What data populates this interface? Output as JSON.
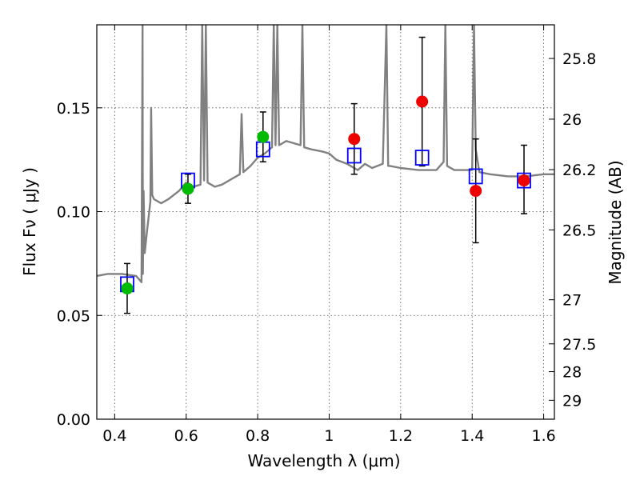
{
  "chart_data": {
    "type": "scatter",
    "xlabel": "Wavelength  λ (μm)",
    "ylabel": "Flux  Fν  ( μJy )",
    "y2label": "Magnitude (AB)",
    "xlim": [
      0.35,
      1.63
    ],
    "ylim": [
      0.0,
      0.19
    ],
    "grid": true,
    "xticks": [
      0.4,
      0.6,
      0.8,
      1.0,
      1.2,
      1.4,
      1.6
    ],
    "xtick_labels": [
      "0.4",
      "0.6",
      "0.8",
      "1",
      "1.2",
      "1.4",
      "1.6"
    ],
    "yticks": [
      0.0,
      0.05,
      0.1,
      0.15
    ],
    "ytick_labels": [
      "0.00",
      "0.05",
      "0.10",
      "0.15"
    ],
    "y2ticks": [
      {
        "label": "25.8",
        "mag": 25.8
      },
      {
        "label": "26",
        "mag": 26.0
      },
      {
        "label": "26.2",
        "mag": 26.2
      },
      {
        "label": "26.5",
        "mag": 26.5
      },
      {
        "label": "27",
        "mag": 27.0
      },
      {
        "label": "27.5",
        "mag": 27.5
      },
      {
        "label": "28",
        "mag": 28.0
      },
      {
        "label": "29",
        "mag": 29.0
      }
    ],
    "colors": {
      "model": "#808080",
      "model_photometry": "#0000ff",
      "obs_optical": "#00bb00",
      "obs_nir": "#ee0000",
      "errorbar": "#000000"
    },
    "model_spectrum": {
      "x": [
        0.35,
        0.38,
        0.42,
        0.46,
        0.475,
        0.478,
        0.479,
        0.481,
        0.484,
        0.49,
        0.5,
        0.502,
        0.505,
        0.51,
        0.53,
        0.55,
        0.58,
        0.6,
        0.62,
        0.64,
        0.645,
        0.65,
        0.655,
        0.66,
        0.68,
        0.7,
        0.72,
        0.75,
        0.755,
        0.76,
        0.78,
        0.8,
        0.82,
        0.84,
        0.845,
        0.85,
        0.855,
        0.86,
        0.88,
        0.9,
        0.92,
        0.925,
        0.93,
        0.95,
        0.98,
        1.0,
        1.02,
        1.05,
        1.08,
        1.1,
        1.12,
        1.15,
        1.16,
        1.165,
        1.17,
        1.2,
        1.25,
        1.3,
        1.32,
        1.325,
        1.33,
        1.35,
        1.38,
        1.4,
        1.405,
        1.41,
        1.42,
        1.45,
        1.5,
        1.55,
        1.6,
        1.63
      ],
      "y": [
        0.069,
        0.07,
        0.07,
        0.069,
        0.066,
        0.19,
        0.07,
        0.11,
        0.08,
        0.09,
        0.105,
        0.15,
        0.108,
        0.106,
        0.104,
        0.106,
        0.11,
        0.114,
        0.112,
        0.113,
        0.19,
        0.115,
        0.19,
        0.114,
        0.112,
        0.113,
        0.115,
        0.118,
        0.147,
        0.119,
        0.122,
        0.126,
        0.128,
        0.131,
        0.19,
        0.132,
        0.19,
        0.132,
        0.134,
        0.133,
        0.132,
        0.19,
        0.131,
        0.13,
        0.129,
        0.128,
        0.125,
        0.123,
        0.12,
        0.123,
        0.121,
        0.123,
        0.19,
        0.122,
        0.122,
        0.121,
        0.12,
        0.12,
        0.124,
        0.19,
        0.122,
        0.12,
        0.12,
        0.12,
        0.19,
        0.13,
        0.119,
        0.118,
        0.117,
        0.117,
        0.118,
        0.118
      ]
    },
    "model_photometry": {
      "x": [
        0.435,
        0.605,
        0.815,
        1.07,
        1.26,
        1.41,
        1.545
      ],
      "y": [
        0.065,
        0.115,
        0.13,
        0.127,
        0.126,
        0.117,
        0.115
      ]
    },
    "observations": [
      {
        "x": 0.435,
        "y": 0.063,
        "err_low": 0.051,
        "err_high": 0.075,
        "band": "optical"
      },
      {
        "x": 0.605,
        "y": 0.111,
        "err_low": 0.104,
        "err_high": 0.118,
        "band": "optical"
      },
      {
        "x": 0.815,
        "y": 0.136,
        "err_low": 0.124,
        "err_high": 0.148,
        "band": "optical"
      },
      {
        "x": 1.07,
        "y": 0.135,
        "err_low": 0.118,
        "err_high": 0.152,
        "band": "nir"
      },
      {
        "x": 1.26,
        "y": 0.153,
        "err_low": 0.122,
        "err_high": 0.184,
        "band": "nir"
      },
      {
        "x": 1.41,
        "y": 0.11,
        "err_low": 0.085,
        "err_high": 0.135,
        "band": "nir"
      },
      {
        "x": 1.545,
        "y": 0.115,
        "err_low": 0.099,
        "err_high": 0.132,
        "band": "nir"
      }
    ]
  }
}
